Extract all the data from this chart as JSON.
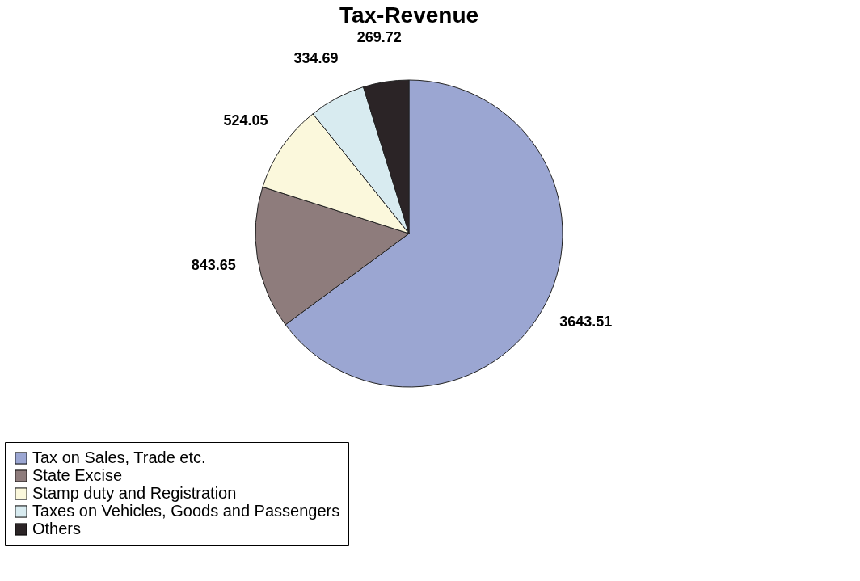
{
  "chart_data": {
    "type": "pie",
    "title": "Tax-Revenue",
    "categories": [
      "Tax on Sales, Trade etc.",
      "State Excise",
      "Stamp duty and Registration",
      "Taxes on Vehicles, Goods and Passengers",
      "Others"
    ],
    "values": [
      3643.51,
      843.65,
      524.05,
      334.69,
      269.72
    ],
    "colors": [
      "#9ba6d2",
      "#8e7c7c",
      "#fbf8dc",
      "#d8ebf0",
      "#2b2426"
    ],
    "data_labels": true,
    "legend": "bottom"
  }
}
